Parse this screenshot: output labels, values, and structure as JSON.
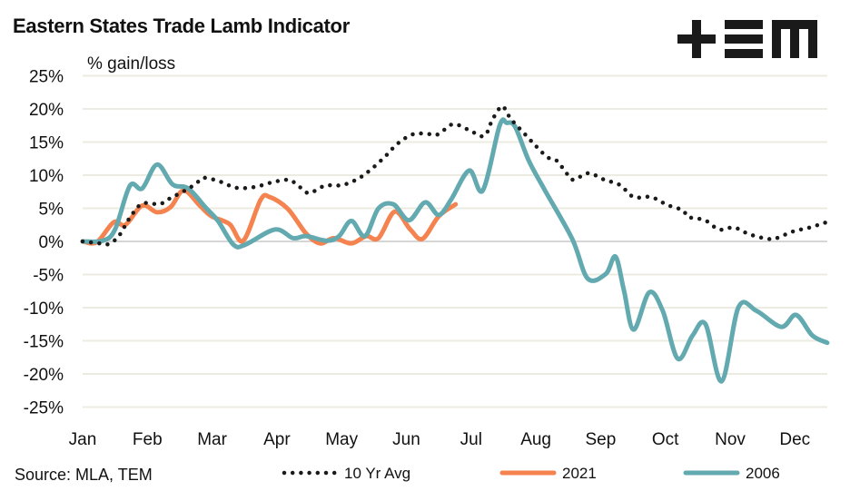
{
  "chart_data": {
    "type": "line",
    "title": "Eastern States Trade Lamb Indicator",
    "ylabel": "% gain/loss",
    "xlabel": "",
    "source": "Source: MLA, TEM",
    "ylim": [
      -25,
      25
    ],
    "yticks": [
      25,
      20,
      15,
      10,
      5,
      0,
      -5,
      -10,
      -15,
      -20,
      -25
    ],
    "ytick_labels": [
      "25%",
      "20%",
      "15%",
      "10%",
      "5%",
      "0%",
      "-5%",
      "-10%",
      "-15%",
      "-20%",
      "-25%"
    ],
    "xticks": [
      "Jan",
      "Feb",
      "Mar",
      "Apr",
      "May",
      "Jun",
      "Jul",
      "Aug",
      "Sep",
      "Oct",
      "Nov",
      "Dec"
    ],
    "x_units": "month (1 = Jan)",
    "grid": "horizontal",
    "legend_position": "bottom",
    "series": [
      {
        "name": "10 Yr Avg",
        "color": "#1a1a1a",
        "style": "dotted",
        "points": [
          [
            1.0,
            0
          ],
          [
            1.27,
            -0.3
          ],
          [
            1.41,
            -0.4
          ],
          [
            1.52,
            0.4
          ],
          [
            1.6,
            1.4
          ],
          [
            1.73,
            3.6
          ],
          [
            1.92,
            5.7
          ],
          [
            2.18,
            5.6
          ],
          [
            2.29,
            6.2
          ],
          [
            2.43,
            6.9
          ],
          [
            2.64,
            8
          ],
          [
            2.77,
            8.9
          ],
          [
            2.88,
            9.6
          ],
          [
            3.13,
            9
          ],
          [
            3.37,
            8.1
          ],
          [
            3.65,
            8.2
          ],
          [
            3.92,
            8.9
          ],
          [
            4.17,
            9.3
          ],
          [
            4.31,
            8.6
          ],
          [
            4.49,
            7.3
          ],
          [
            4.74,
            8.4
          ],
          [
            5.01,
            8.5
          ],
          [
            5.26,
            9.5
          ],
          [
            5.47,
            11
          ],
          [
            5.68,
            12.9
          ],
          [
            5.87,
            14.8
          ],
          [
            6.11,
            16.2
          ],
          [
            6.36,
            16.2
          ],
          [
            6.5,
            16.2
          ],
          [
            6.72,
            17.7
          ],
          [
            6.97,
            16.8
          ],
          [
            7.2,
            15.9
          ],
          [
            7.33,
            18.4
          ],
          [
            7.47,
            20.4
          ],
          [
            7.55,
            19.5
          ],
          [
            7.62,
            18.4
          ],
          [
            7.82,
            16.3
          ],
          [
            8.0,
            14.4
          ],
          [
            8.18,
            12.7
          ],
          [
            8.32,
            12.2
          ],
          [
            8.49,
            10.1
          ],
          [
            8.59,
            9.3
          ],
          [
            8.81,
            10.3
          ],
          [
            9.06,
            9.3
          ],
          [
            9.3,
            8.5
          ],
          [
            9.51,
            6.7
          ],
          [
            9.78,
            6.7
          ],
          [
            10.03,
            5.5
          ],
          [
            10.27,
            4.7
          ],
          [
            10.35,
            3.7
          ],
          [
            10.61,
            3.2
          ],
          [
            10.83,
            1.8
          ],
          [
            11.06,
            2.1
          ],
          [
            11.29,
            1.1
          ],
          [
            11.57,
            0.4
          ],
          [
            11.72,
            0.5
          ],
          [
            11.97,
            1.5
          ],
          [
            12.23,
            2.1
          ],
          [
            12.49,
            2.9
          ]
        ]
      },
      {
        "name": "2021",
        "color": "#f4834f",
        "style": "solid",
        "points": [
          [
            1.0,
            0
          ],
          [
            1.22,
            -0.1
          ],
          [
            1.48,
            2.9
          ],
          [
            1.66,
            2.5
          ],
          [
            1.92,
            5.4
          ],
          [
            2.15,
            4.4
          ],
          [
            2.36,
            5.2
          ],
          [
            2.56,
            7.7
          ],
          [
            2.81,
            5.4
          ],
          [
            2.99,
            3.8
          ],
          [
            3.27,
            2.6
          ],
          [
            3.48,
            0.1
          ],
          [
            3.75,
            6.3
          ],
          [
            3.89,
            6.7
          ],
          [
            4.17,
            4.9
          ],
          [
            4.45,
            1.2
          ],
          [
            4.67,
            -0.3
          ],
          [
            4.88,
            0.5
          ],
          [
            5.15,
            -0.3
          ],
          [
            5.38,
            0.8
          ],
          [
            5.57,
            0.5
          ],
          [
            5.82,
            4.5
          ],
          [
            6.06,
            1.8
          ],
          [
            6.25,
            0.4
          ],
          [
            6.5,
            3.8
          ],
          [
            6.76,
            5.6
          ]
        ]
      },
      {
        "name": "2006",
        "color": "#62a9b0",
        "style": "solid",
        "points": [
          [
            1.0,
            0
          ],
          [
            1.31,
            0.1
          ],
          [
            1.5,
            1.8
          ],
          [
            1.73,
            8.4
          ],
          [
            1.92,
            8
          ],
          [
            2.15,
            11.6
          ],
          [
            2.39,
            8.6
          ],
          [
            2.63,
            8
          ],
          [
            2.91,
            5
          ],
          [
            3.09,
            3.1
          ],
          [
            3.33,
            -0.5
          ],
          [
            3.51,
            -0.5
          ],
          [
            3.97,
            1.8
          ],
          [
            4.25,
            0.5
          ],
          [
            4.45,
            0.8
          ],
          [
            4.77,
            0.1
          ],
          [
            4.96,
            0.8
          ],
          [
            5.15,
            3.1
          ],
          [
            5.36,
            0.8
          ],
          [
            5.57,
            5
          ],
          [
            5.8,
            5.6
          ],
          [
            6.04,
            3.2
          ],
          [
            6.29,
            5.9
          ],
          [
            6.5,
            4
          ],
          [
            6.69,
            6.3
          ],
          [
            6.97,
            10.7
          ],
          [
            7.18,
            7.7
          ],
          [
            7.44,
            17.5
          ],
          [
            7.55,
            17.9
          ],
          [
            7.68,
            17.3
          ],
          [
            7.89,
            12.2
          ],
          [
            8.14,
            7.7
          ],
          [
            8.56,
            0.4
          ],
          [
            8.8,
            -5.6
          ],
          [
            9.08,
            -4.9
          ],
          [
            9.23,
            -2.3
          ],
          [
            9.36,
            -7.4
          ],
          [
            9.51,
            -13.3
          ],
          [
            9.75,
            -7.7
          ],
          [
            9.96,
            -10.5
          ],
          [
            10.19,
            -17.7
          ],
          [
            10.42,
            -14.2
          ],
          [
            10.62,
            -12.5
          ],
          [
            10.87,
            -21.1
          ],
          [
            11.13,
            -9.9
          ],
          [
            11.41,
            -10.5
          ],
          [
            11.79,
            -12.9
          ],
          [
            12.02,
            -11.1
          ],
          [
            12.27,
            -14.2
          ],
          [
            12.5,
            -15.3
          ]
        ]
      }
    ]
  },
  "logo": {
    "text": "TEM"
  }
}
